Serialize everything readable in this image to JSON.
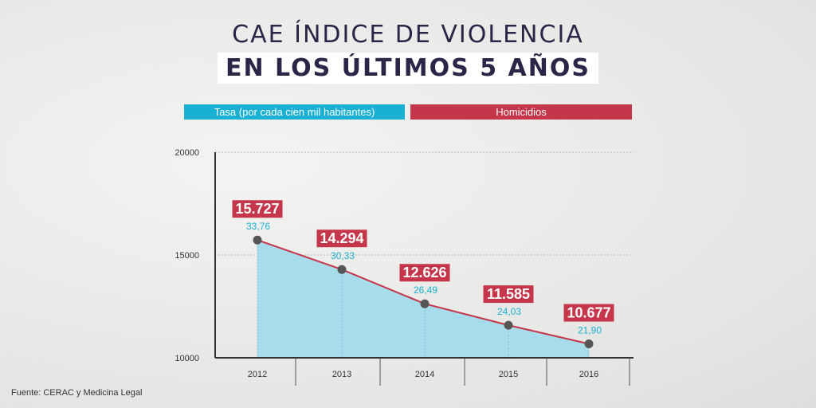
{
  "title": {
    "line1": "CAE ÍNDICE DE VIOLENCIA",
    "line2": "EN LOS ÚLTIMOS 5 AÑOS"
  },
  "legend": {
    "tasa": "Tasa (por cada cien mil habitantes)",
    "homicidios": "Homicidios"
  },
  "colors": {
    "tasa": "#1ab0d3",
    "homicidios": "#c5364a",
    "area": "#a7dcea",
    "line": "#c5364a",
    "point": "#555555"
  },
  "source": "Fuente: CERAC y Medicina Legal",
  "chart_data": {
    "type": "area",
    "title": "CAE ÍNDICE DE VIOLENCIA EN LOS ÚLTIMOS 5 AÑOS",
    "categories": [
      "2012",
      "2013",
      "2014",
      "2015",
      "2016"
    ],
    "series": [
      {
        "name": "Homicidios",
        "values": [
          15727,
          14294,
          12626,
          11585,
          10677
        ],
        "labels": [
          "15.727",
          "14.294",
          "12.626",
          "11.585",
          "10.677"
        ]
      },
      {
        "name": "Tasa (por cada cien mil habitantes)",
        "values": [
          33.76,
          30.33,
          26.49,
          24.03,
          21.9
        ],
        "labels": [
          "33,76",
          "30,33",
          "26,49",
          "24,03",
          "21,90"
        ]
      }
    ],
    "yticks": [
      "20000",
      "15000",
      "10000"
    ],
    "ytick_values": [
      20000,
      15000,
      10000
    ],
    "ylim": [
      10000,
      20000
    ],
    "xlabel": "",
    "ylabel": "",
    "grid": true
  }
}
